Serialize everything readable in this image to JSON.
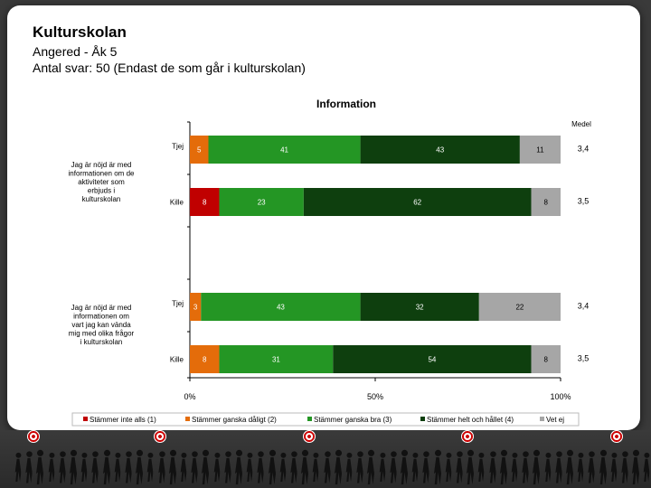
{
  "header": {
    "title": "Kulturskolan",
    "subtitle": "Angered - Åk 5",
    "respondents": "Antal svar: 50 (Endast de som går i kulturskolan)"
  },
  "chart_data": {
    "type": "bar",
    "orientation": "horizontal",
    "stacked": true,
    "title": "Information",
    "extra_column_label": "Medel",
    "xlim": [
      0,
      100
    ],
    "x_ticks": [
      "0%",
      "50%",
      "100%"
    ],
    "groups": [
      {
        "question": "Jag är nöjd är med informationen om de aktiviteter som erbjuds i kulturskolan",
        "rows": [
          0,
          1
        ]
      },
      {
        "question": "Jag är nöjd är med informationen om vart jag kan vända mig med olika frågor i kulturskolan",
        "rows": [
          2,
          3
        ]
      }
    ],
    "rows": [
      {
        "label": "Tjej",
        "values": [
          0,
          5,
          41,
          43,
          11
        ],
        "medel": "3,4"
      },
      {
        "label": "Kille",
        "values": [
          8,
          0,
          23,
          62,
          8
        ],
        "medel": "3,5"
      },
      {
        "label": "Tjej",
        "values": [
          0,
          3,
          43,
          32,
          22
        ],
        "medel": "3,4"
      },
      {
        "label": "Kille",
        "values": [
          0,
          8,
          31,
          54,
          8
        ],
        "medel": "3,5"
      }
    ],
    "series": [
      {
        "name": "Stämmer inte alls (1)",
        "color": "#c00000"
      },
      {
        "name": "Stämmer ganska dåligt (2)",
        "color": "#e46c0a"
      },
      {
        "name": "Stämmer ganska bra (3)",
        "color": "#249624"
      },
      {
        "name": "Stämmer helt och hållet (4)",
        "color": "#0e3f0e"
      },
      {
        "name": "Vet ej",
        "color": "#a6a6a6"
      }
    ]
  }
}
